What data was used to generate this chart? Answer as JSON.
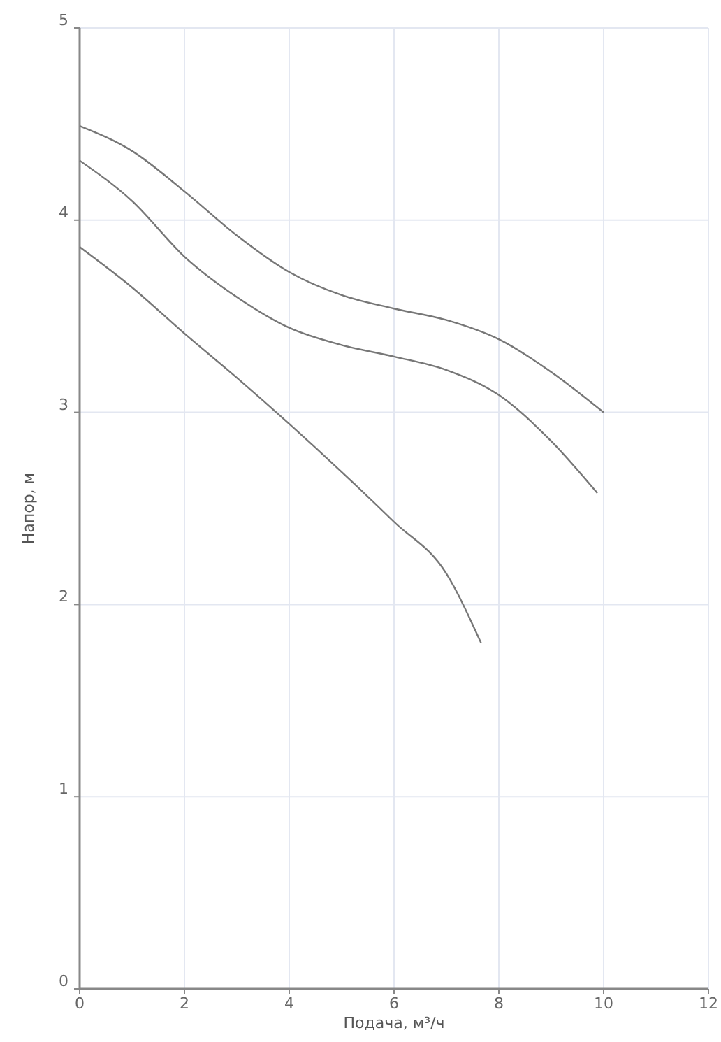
{
  "chart_data": {
    "type": "line",
    "xlabel": "Подача, м³/ч",
    "ylabel": "Напор, м",
    "xlim": [
      0,
      12
    ],
    "xticks": [
      0,
      2,
      4,
      6,
      8,
      10,
      12
    ],
    "ylim": [
      0,
      5
    ],
    "yticks": [
      0,
      1,
      2,
      3,
      4,
      5
    ],
    "grid": true,
    "marker": "none",
    "line_style": "solid",
    "series": [
      {
        "color": "#777777",
        "x": [
          0,
          1,
          2,
          3,
          4,
          5,
          6,
          7,
          8,
          9,
          10
        ],
        "values": [
          4.49,
          4.36,
          4.15,
          3.92,
          3.73,
          3.61,
          3.54,
          3.48,
          3.38,
          3.21,
          3.0
        ]
      },
      {
        "color": "#777777",
        "x": [
          0,
          1,
          2,
          3,
          4,
          5,
          6,
          7,
          8,
          9,
          9.88
        ],
        "values": [
          4.31,
          4.1,
          3.81,
          3.6,
          3.44,
          3.35,
          3.29,
          3.22,
          3.09,
          2.85,
          2.58
        ]
      },
      {
        "color": "#777777",
        "x": [
          0,
          1,
          2,
          3,
          4,
          5,
          6,
          7,
          7.66
        ],
        "values": [
          3.86,
          3.65,
          3.41,
          3.18,
          2.94,
          2.69,
          2.43,
          2.16,
          1.8
        ]
      }
    ]
  }
}
